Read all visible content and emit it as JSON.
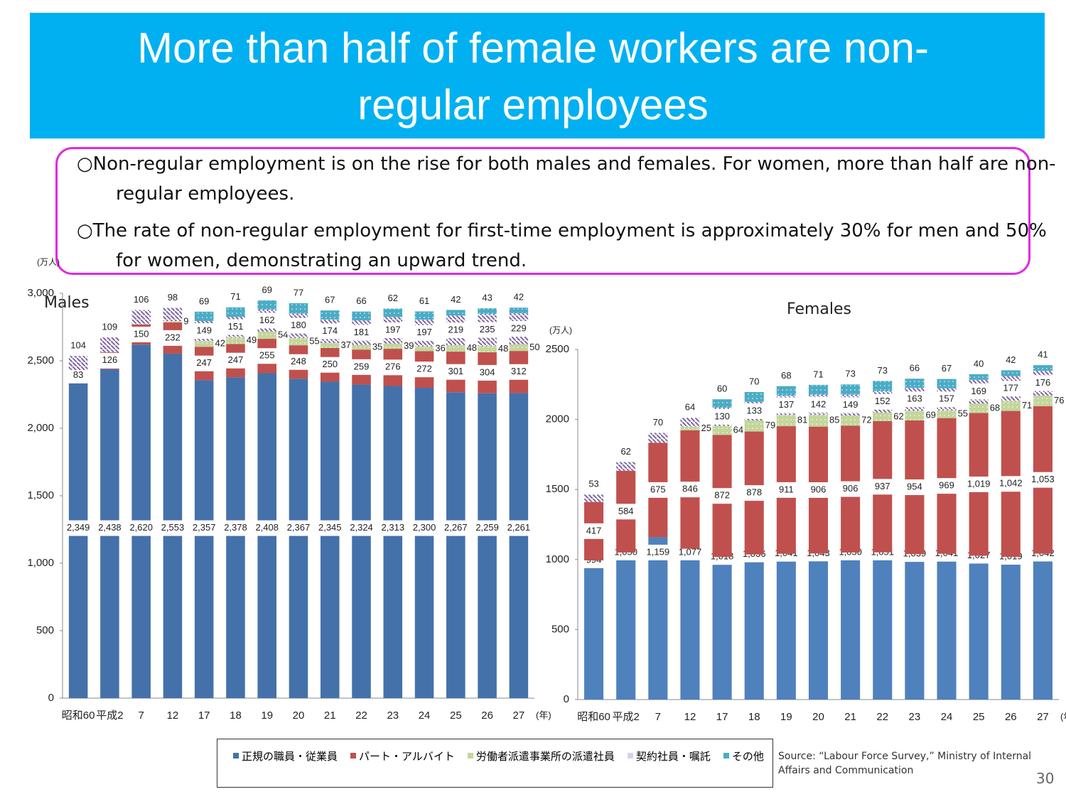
{
  "title": "More than half of female workers are non-regular employees",
  "bullets": [
    "○Non-regular employment is on the rise for both males and females. For women, more than half are non-regular employees.",
    "○The rate of non-regular employment for first-time employment is approximately 30% for men and 50% for women, demonstrating an upward trend."
  ],
  "source": "Source: “Labour Force Survey,” Ministry of Internal Affairs and Communication",
  "page_number": "30",
  "chart_data": [
    {
      "type": "stacked-bar",
      "title": "Males",
      "y_unit": "(万人)",
      "x_unit": "(年)",
      "categories": [
        "昭和60",
        "平成2",
        "7",
        "12",
        "17",
        "18",
        "19",
        "20",
        "21",
        "22",
        "23",
        "24",
        "25",
        "26",
        "27"
      ],
      "ylim": [
        0,
        3000
      ],
      "yticks": [
        0,
        500,
        {
          "value": 1000,
          "label": "1,000"
        },
        {
          "value": 1500,
          "label": "1,500"
        },
        {
          "value": 2000,
          "label": "2,000"
        },
        {
          "value": 2500,
          "label": "2,500"
        },
        {
          "value": 3000,
          "label": "3,000"
        }
      ],
      "series": [
        {
          "name": "正規の職員・従業員",
          "color": "#4471aa",
          "values": [
            2349,
            2438,
            2620,
            2553,
            2357,
            2378,
            2408,
            2367,
            2345,
            2324,
            2313,
            2300,
            2267,
            2259,
            2261
          ],
          "value_labels": [
            "2,349",
            "2,438",
            "2,620",
            "2,553",
            "2,357",
            "2,378",
            "2,408",
            "2,367",
            "2,345",
            "2,324",
            "2,313",
            "2,300",
            "2,267",
            "2,259",
            "2,261"
          ]
        },
        {
          "name": "パート・アルバイト",
          "color": "#c0504d",
          "values": [
            83,
            126,
            150,
            232,
            247,
            247,
            255,
            248,
            250,
            259,
            276,
            272,
            301,
            304,
            312
          ]
        },
        {
          "name": "労働者派遣事業所の派遣社員",
          "color": "#c3d69b",
          "values": [
            null,
            null,
            null,
            9,
            42,
            49,
            54,
            55,
            37,
            35,
            39,
            36,
            48,
            48,
            50
          ]
        },
        {
          "name": "契約社員・嘱託",
          "color": "#d9d0ec",
          "values": [
            104,
            109,
            106,
            98,
            149,
            151,
            162,
            180,
            174,
            181,
            197,
            197,
            219,
            235,
            229
          ]
        },
        {
          "name": "その他",
          "color": "#4bacc6",
          "values": [
            null,
            null,
            null,
            null,
            69,
            71,
            69,
            77,
            67,
            66,
            62,
            61,
            42,
            43,
            42
          ]
        }
      ]
    },
    {
      "type": "stacked-bar",
      "title": "Females",
      "y_unit": "(万人)",
      "x_unit": "(年)",
      "categories": [
        "昭和60",
        "平成2",
        "7",
        "12",
        "17",
        "18",
        "19",
        "20",
        "21",
        "22",
        "23",
        "24",
        "25",
        "26",
        "27"
      ],
      "ylim": [
        0,
        2500
      ],
      "yticks": [
        0,
        500,
        1000,
        1500,
        2000,
        2500
      ],
      "series": [
        {
          "name": "正規の職員・従業員",
          "color": "#4f81bd",
          "values": [
            994,
            1050,
            1159,
            1077,
            1018,
            1036,
            1041,
            1043,
            1050,
            1051,
            1039,
            1041,
            1027,
            1019,
            1042
          ],
          "value_labels": [
            "994",
            "1,050",
            "1,159",
            "1,077",
            "1,018",
            "1,036",
            "1,041",
            "1,043",
            "1,050",
            "1,051",
            "1,039",
            "1,041",
            "1,027",
            "1,019",
            "1,042"
          ]
        },
        {
          "name": "パート・アルバイト",
          "color": "#c0504d",
          "values": [
            417,
            584,
            675,
            846,
            872,
            878,
            911,
            906,
            906,
            937,
            954,
            969,
            1019,
            1042,
            1053
          ],
          "value_labels": [
            "417",
            "584",
            "675",
            "846",
            "872",
            "878",
            "911",
            "906",
            "906",
            "937",
            "954",
            "969",
            "1,019",
            "1,042",
            "1,053"
          ]
        },
        {
          "name": "労働者派遣事業所の派遣社員",
          "color": "#c3d69b",
          "values": [
            null,
            null,
            null,
            25,
            64,
            79,
            81,
            85,
            72,
            62,
            69,
            55,
            68,
            71,
            76
          ]
        },
        {
          "name": "契約社員・嘱託",
          "color": "#d9d0ec",
          "values": [
            53,
            62,
            70,
            64,
            130,
            133,
            137,
            142,
            149,
            152,
            163,
            157,
            169,
            177,
            176
          ]
        },
        {
          "name": "その他",
          "color": "#4bacc6",
          "values": [
            null,
            null,
            null,
            null,
            60,
            70,
            68,
            71,
            73,
            73,
            66,
            67,
            40,
            42,
            41
          ]
        }
      ]
    }
  ]
}
